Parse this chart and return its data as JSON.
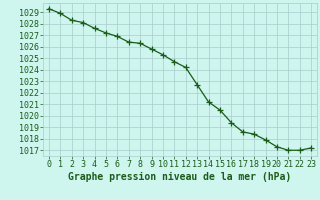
{
  "x": [
    0,
    1,
    2,
    3,
    4,
    5,
    6,
    7,
    8,
    9,
    10,
    11,
    12,
    13,
    14,
    15,
    16,
    17,
    18,
    19,
    20,
    21,
    22,
    23
  ],
  "y": [
    1029.3,
    1028.9,
    1028.3,
    1028.1,
    1027.6,
    1027.2,
    1026.9,
    1026.4,
    1026.3,
    1025.8,
    1025.3,
    1024.7,
    1024.2,
    1022.7,
    1021.2,
    1020.5,
    1019.4,
    1018.6,
    1018.4,
    1017.9,
    1017.3,
    1017.0,
    1017.0,
    1017.2
  ],
  "line_color": "#1a5c1a",
  "marker": "+",
  "marker_size": 4,
  "bg_color": "#cef5ee",
  "grid_color": "#aacccc",
  "title": "Graphe pression niveau de la mer (hPa)",
  "xlabel_ticks": [
    0,
    1,
    2,
    3,
    4,
    5,
    6,
    7,
    8,
    9,
    10,
    11,
    12,
    13,
    14,
    15,
    16,
    17,
    18,
    19,
    20,
    21,
    22,
    23
  ],
  "ytick_labels": [
    1017,
    1018,
    1019,
    1020,
    1021,
    1022,
    1023,
    1024,
    1025,
    1026,
    1027,
    1028,
    1029
  ],
  "ylim": [
    1016.5,
    1029.8
  ],
  "xlim": [
    -0.5,
    23.5
  ],
  "tick_color": "#1a5c1a",
  "title_fontsize": 7,
  "tick_fontsize": 6,
  "linewidth": 0.9
}
